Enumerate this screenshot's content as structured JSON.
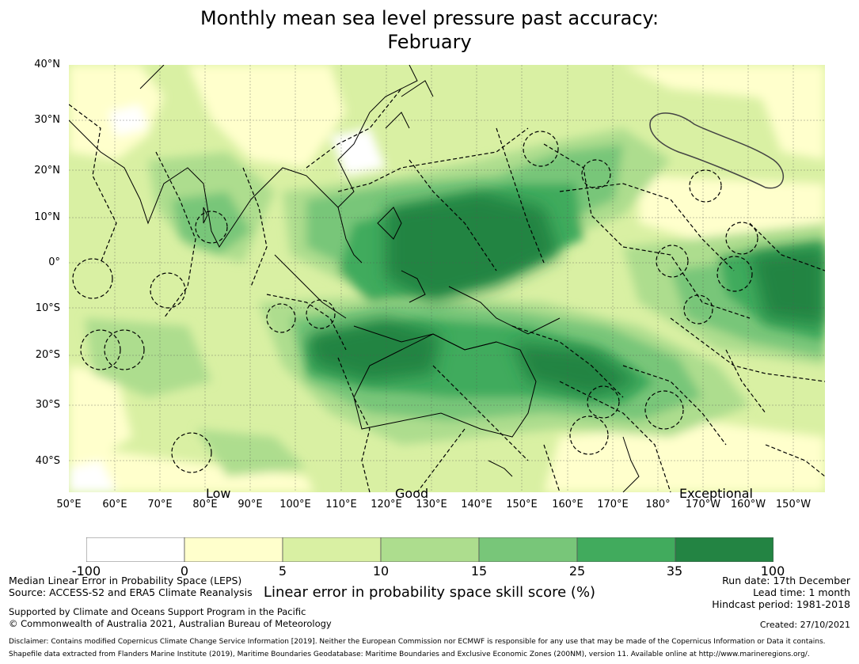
{
  "title_line1": "Monthly mean sea level pressure past accuracy:",
  "title_line2": "February",
  "map": {
    "lat_labels": [
      "40°N",
      "30°N",
      "20°N",
      "10°N",
      "0°",
      "10°S",
      "20°S",
      "30°S",
      "40°S"
    ],
    "lon_labels": [
      "50°E",
      "60°E",
      "70°E",
      "80°E",
      "90°E",
      "100°E",
      "110°E",
      "120°E",
      "130°E",
      "140°E",
      "150°E",
      "160°E",
      "170°E",
      "180°",
      "170°W",
      "160°W",
      "150°W"
    ],
    "band_labels": {
      "low": "Low",
      "good": "Good",
      "exceptional": "Exceptional"
    }
  },
  "colorbar": {
    "ticks": [
      "-100",
      "0",
      "5",
      "10",
      "15",
      "25",
      "35",
      "100"
    ],
    "colors": [
      "#ffffff",
      "#ffffcc",
      "#d9f0a3",
      "#addd8e",
      "#78c679",
      "#41ab5d",
      "#238443"
    ],
    "label": "Linear error in probability space skill score (%)"
  },
  "footer": {
    "left1": "Median Linear Error in Probability Space (LEPS)",
    "left2": "Source: ACCESS-S2 and ERA5 Climate Reanalysis",
    "left3": "Supported by Climate and Oceans Support Program in the Pacific",
    "left4": "© Commonwealth of Australia 2021, Australian Bureau of Meteorology",
    "right1": "Run date: 17th December",
    "right2": "Lead time: 1 month",
    "right3": "Hindcast period: 1981-2018",
    "created": "Created: 27/10/2021",
    "disclaimer1": "Disclaimer: Contains modified Copernicus Climate Change Service Information [2019]. Neither the European Commission nor ECMWF is responsible for any use that may be made of the Copernicus Information or Data it contains.",
    "disclaimer2": "Shapefile data extracted from Flanders Marine Institute (2019), Maritime Boundaries Geodatabase: Maritime Boundaries and Exclusive Economic Zones (200NM), version 11. Available online at http://www.marineregions.org/."
  }
}
